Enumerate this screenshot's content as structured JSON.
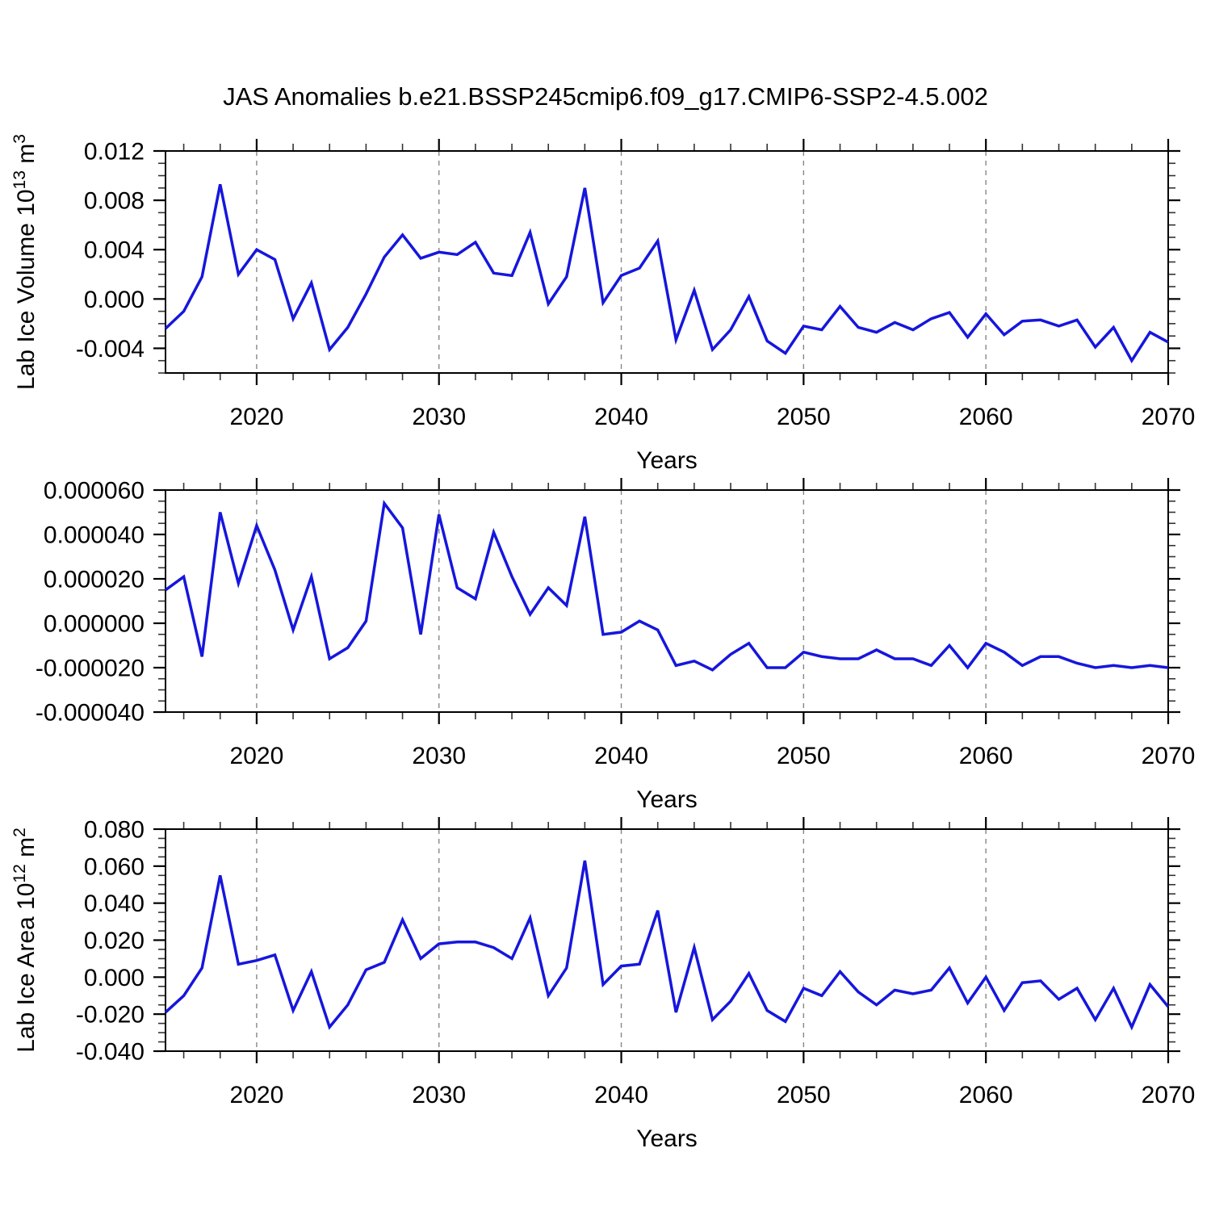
{
  "title": "JAS Anomalies b.e21.BSSP245cmip6.f09_g17.CMIP6-SSP2-4.5.002",
  "colors": {
    "line": "#1616dd",
    "grid": "#878787",
    "axis": "#000000",
    "minor_tick": "#333333",
    "background": "#ffffff"
  },
  "years": [
    2015,
    2016,
    2017,
    2018,
    2019,
    2020,
    2021,
    2022,
    2023,
    2024,
    2025,
    2026,
    2027,
    2028,
    2029,
    2030,
    2031,
    2032,
    2033,
    2034,
    2035,
    2036,
    2037,
    2038,
    2039,
    2040,
    2041,
    2042,
    2043,
    2044,
    2045,
    2046,
    2047,
    2048,
    2049,
    2050,
    2051,
    2052,
    2053,
    2054,
    2055,
    2056,
    2057,
    2058,
    2059,
    2060,
    2061,
    2062,
    2063,
    2064,
    2065,
    2066,
    2067,
    2068,
    2069,
    2070
  ],
  "chart_data": [
    {
      "type": "line",
      "name": "lab-ice-volume",
      "ylabel": "Lab Ice Volume 10^13 m^3",
      "ylabel_parts": [
        {
          "t": "Lab Ice Volume 10",
          "sup": false
        },
        {
          "t": "13",
          "sup": true
        },
        {
          "t": " m",
          "sup": false
        },
        {
          "t": "3",
          "sup": true
        }
      ],
      "xlabel": "Years",
      "xlim": [
        2015,
        2070
      ],
      "xticks": [
        2020,
        2030,
        2040,
        2050,
        2060,
        2070
      ],
      "xtick_labels": [
        "2020",
        "2030",
        "2040",
        "2050",
        "2060",
        "2070"
      ],
      "xminor_step": 2,
      "grid_x": [
        2020,
        2030,
        2040,
        2050,
        2060
      ],
      "ylim": [
        -0.006,
        0.012
      ],
      "yticks": [
        -0.004,
        0.0,
        0.004,
        0.008,
        0.012
      ],
      "ytick_labels": [
        "-0.004",
        "0.000",
        "0.004",
        "0.008",
        "0.012"
      ],
      "yminor_step": 0.001,
      "values": [
        -0.0024,
        -0.001,
        0.0018,
        0.0093,
        0.002,
        0.004,
        0.0032,
        -0.0016,
        0.0013,
        -0.0041,
        -0.0023,
        0.0004,
        0.0034,
        0.0052,
        0.0033,
        0.0038,
        0.0036,
        0.0046,
        0.0021,
        0.0019,
        0.0054,
        -0.0004,
        0.0018,
        0.009,
        -0.0003,
        0.0019,
        0.0025,
        0.0047,
        -0.0033,
        0.0007,
        -0.0041,
        -0.0025,
        0.0002,
        -0.0034,
        -0.0044,
        -0.0022,
        -0.0025,
        -0.0006,
        -0.0023,
        -0.0027,
        -0.0019,
        -0.0025,
        -0.0016,
        -0.0011,
        -0.0031,
        -0.0012,
        -0.0029,
        -0.0018,
        -0.0017,
        -0.0022,
        -0.0017,
        -0.0039,
        -0.0023,
        -0.005,
        -0.0027,
        -0.0035
      ]
    },
    {
      "type": "line",
      "name": "lab-ice-middle-series",
      "ylabel": null,
      "ylabel_parts": [],
      "xlabel": "Years",
      "xlim": [
        2015,
        2070
      ],
      "xticks": [
        2020,
        2030,
        2040,
        2050,
        2060,
        2070
      ],
      "xtick_labels": [
        "2020",
        "2030",
        "2040",
        "2050",
        "2060",
        "2070"
      ],
      "xminor_step": 2,
      "grid_x": [
        2020,
        2030,
        2040,
        2050,
        2060
      ],
      "ylim": [
        -4e-05,
        6e-05
      ],
      "yticks": [
        -4e-05,
        -2e-05,
        0.0,
        2e-05,
        4e-05,
        6e-05
      ],
      "ytick_labels": [
        "-0.000040",
        "-0.000020",
        "0.000000",
        "0.000020",
        "0.000040",
        "0.000060"
      ],
      "yminor_step": 5e-06,
      "values": [
        1.5e-05,
        2.1e-05,
        -1.5e-05,
        5e-05,
        1.8e-05,
        4.4e-05,
        2.4e-05,
        -3e-06,
        2.1e-05,
        -1.6e-05,
        -1.1e-05,
        1e-06,
        5.4e-05,
        4.3e-05,
        -5e-06,
        4.9e-05,
        1.6e-05,
        1.1e-05,
        4.1e-05,
        2.1e-05,
        4e-06,
        1.6e-05,
        8e-06,
        4.8e-05,
        -5e-06,
        -4e-06,
        1e-06,
        -3e-06,
        -1.9e-05,
        -1.7e-05,
        -2.1e-05,
        -1.4e-05,
        -9e-06,
        -2e-05,
        -2e-05,
        -1.3e-05,
        -1.5e-05,
        -1.6e-05,
        -1.6e-05,
        -1.2e-05,
        -1.6e-05,
        -1.6e-05,
        -1.9e-05,
        -1e-05,
        -2e-05,
        -9e-06,
        -1.3e-05,
        -1.9e-05,
        -1.5e-05,
        -1.5e-05,
        -1.8e-05,
        -2e-05,
        -1.9e-05,
        -2e-05,
        -1.9e-05,
        -2e-05
      ]
    },
    {
      "type": "line",
      "name": "lab-ice-area",
      "ylabel": "Lab Ice Area 10^12 m^2",
      "ylabel_parts": [
        {
          "t": "Lab Ice Area 10",
          "sup": false
        },
        {
          "t": "12",
          "sup": true
        },
        {
          "t": " m",
          "sup": false
        },
        {
          "t": "2",
          "sup": true
        }
      ],
      "xlabel": "Years",
      "xlim": [
        2015,
        2070
      ],
      "xticks": [
        2020,
        2030,
        2040,
        2050,
        2060,
        2070
      ],
      "xtick_labels": [
        "2020",
        "2030",
        "2040",
        "2050",
        "2060",
        "2070"
      ],
      "xminor_step": 2,
      "grid_x": [
        2020,
        2030,
        2040,
        2050,
        2060
      ],
      "ylim": [
        -0.04,
        0.08
      ],
      "yticks": [
        -0.04,
        -0.02,
        0.0,
        0.02,
        0.04,
        0.06,
        0.08
      ],
      "ytick_labels": [
        "-0.040",
        "-0.020",
        "0.000",
        "0.020",
        "0.040",
        "0.060",
        "0.080"
      ],
      "yminor_step": 0.005,
      "values": [
        -0.019,
        -0.01,
        0.005,
        0.055,
        0.007,
        0.009,
        0.012,
        -0.018,
        0.003,
        -0.027,
        -0.015,
        0.004,
        0.008,
        0.031,
        0.01,
        0.018,
        0.019,
        0.019,
        0.016,
        0.01,
        0.032,
        -0.01,
        0.005,
        0.063,
        -0.004,
        0.006,
        0.007,
        0.036,
        -0.019,
        0.016,
        -0.023,
        -0.013,
        0.002,
        -0.018,
        -0.024,
        -0.006,
        -0.01,
        0.003,
        -0.008,
        -0.015,
        -0.007,
        -0.009,
        -0.007,
        0.005,
        -0.014,
        0.0,
        -0.018,
        -0.003,
        -0.002,
        -0.012,
        -0.006,
        -0.023,
        -0.006,
        -0.027,
        -0.004,
        -0.016
      ]
    }
  ]
}
